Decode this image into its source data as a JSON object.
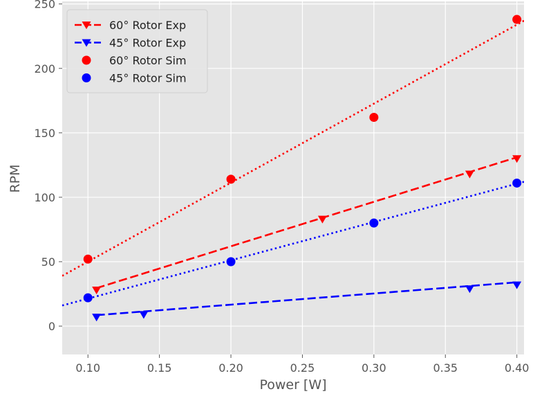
{
  "chart_data": {
    "type": "line",
    "title": "",
    "xlabel": "Power [W]",
    "ylabel": "RPM",
    "xlim": [
      0.082,
      0.405
    ],
    "ylim": [
      -22,
      252
    ],
    "xticks": [
      0.1,
      0.15,
      0.2,
      0.25,
      0.3,
      0.35,
      0.4
    ],
    "xtick_labels": [
      "0.10",
      "0.15",
      "0.20",
      "0.25",
      "0.30",
      "0.35",
      "0.40"
    ],
    "yticks": [
      0,
      50,
      100,
      150,
      200,
      250
    ],
    "ytick_labels": [
      "0",
      "50",
      "100",
      "150",
      "200",
      "250"
    ],
    "grid": true,
    "legend_position": "top-left",
    "background_color": "#e5e5e5",
    "series": [
      {
        "name": "60° Rotor Exp",
        "kind": "markers-and-fit",
        "color": "#ff0000",
        "marker": "triangle-down",
        "line_style": "dashed",
        "x": [
          0.106,
          0.264,
          0.367,
          0.4
        ],
        "y": [
          28,
          83,
          118,
          130
        ],
        "fit": {
          "x": [
            0.106,
            0.4
          ],
          "y": [
            29.5,
            131
          ]
        }
      },
      {
        "name": "45° Rotor Exp",
        "kind": "markers-and-fit",
        "color": "#0000ff",
        "marker": "triangle-down",
        "line_style": "dashed",
        "x": [
          0.106,
          0.139,
          0.367,
          0.4
        ],
        "y": [
          7,
          9,
          29,
          32
        ],
        "fit": {
          "x": [
            0.106,
            0.4
          ],
          "y": [
            8.5,
            34
          ]
        }
      },
      {
        "name": "60° Rotor Sim",
        "kind": "markers-and-fit",
        "color": "#ff0000",
        "marker": "circle",
        "line_style": "dotted",
        "x": [
          0.1,
          0.2,
          0.3,
          0.4
        ],
        "y": [
          52,
          114,
          162,
          238
        ],
        "fit": {
          "x": [
            0.082,
            0.405
          ],
          "y": [
            39,
            237
          ]
        }
      },
      {
        "name": "45° Rotor Sim",
        "kind": "markers-and-fit",
        "color": "#0000ff",
        "marker": "circle",
        "line_style": "dotted",
        "x": [
          0.1,
          0.2,
          0.3,
          0.4
        ],
        "y": [
          22,
          50,
          80,
          111
        ],
        "fit": {
          "x": [
            0.082,
            0.405
          ],
          "y": [
            16,
            112
          ]
        }
      }
    ]
  }
}
